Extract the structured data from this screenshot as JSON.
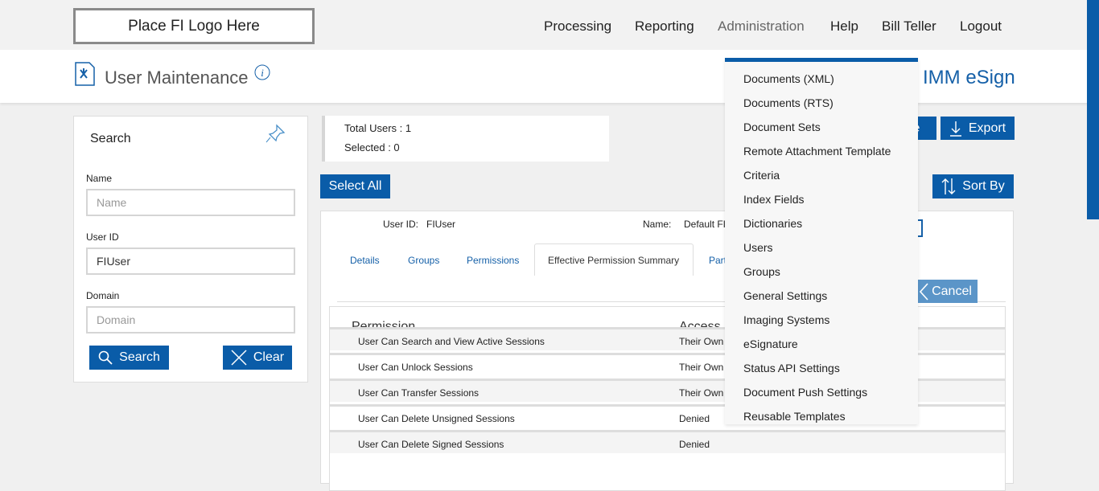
{
  "header": {
    "logo": "Place FI Logo Here",
    "nav": [
      "Processing",
      "Reporting",
      "Administration",
      "Help",
      "Bill Teller",
      "Logout"
    ]
  },
  "page": {
    "title": "User Maintenance",
    "app_name": "IMM eSign"
  },
  "search": {
    "title": "Search",
    "name_label": "Name",
    "name_placeholder": "Name",
    "name_value": "",
    "userid_label": "User ID",
    "userid_value": "FIUser",
    "domain_label": "Domain",
    "domain_placeholder": "Domain",
    "search_button": "Search",
    "clear_button": "Clear"
  },
  "summary": {
    "total": "Total Users : 1",
    "selected": "Selected : 0"
  },
  "toolbar": {
    "select_all": "Select All",
    "hidden_button_fragment": "te",
    "export": "Export",
    "sort_by": "Sort By"
  },
  "user": {
    "userid_label": "User ID:",
    "userid_value": "FIUser",
    "name_label": "Name:",
    "name_value": "Default FI"
  },
  "tabs": [
    "Details",
    "Groups",
    "Permissions",
    "Effective Permission Summary",
    "Part"
  ],
  "active_tab": "Effective Permission Summary",
  "cancel_button": "Cancel",
  "table": {
    "headers": [
      "Permission",
      "Access"
    ],
    "rows": [
      [
        "User Can Search and View Active Sessions",
        "Their Own"
      ],
      [
        "User Can Unlock Sessions",
        "Their Own"
      ],
      [
        "User Can Transfer Sessions",
        "Their Own"
      ],
      [
        "User Can Delete Unsigned Sessions",
        "Denied"
      ],
      [
        "User Can Delete Signed Sessions",
        "Denied"
      ]
    ]
  },
  "admin_menu": [
    "Documents (XML)",
    "Documents (RTS)",
    "Document Sets",
    "Remote Attachment Template",
    "Criteria",
    "Index Fields",
    "Dictionaries",
    "Users",
    "Groups",
    "General Settings",
    "Imaging Systems",
    "eSignature",
    "Status API Settings",
    "Document Push Settings",
    "Reusable Templates"
  ],
  "colors": {
    "primary": "#0a5ca8",
    "cancel": "#5b95c8"
  }
}
